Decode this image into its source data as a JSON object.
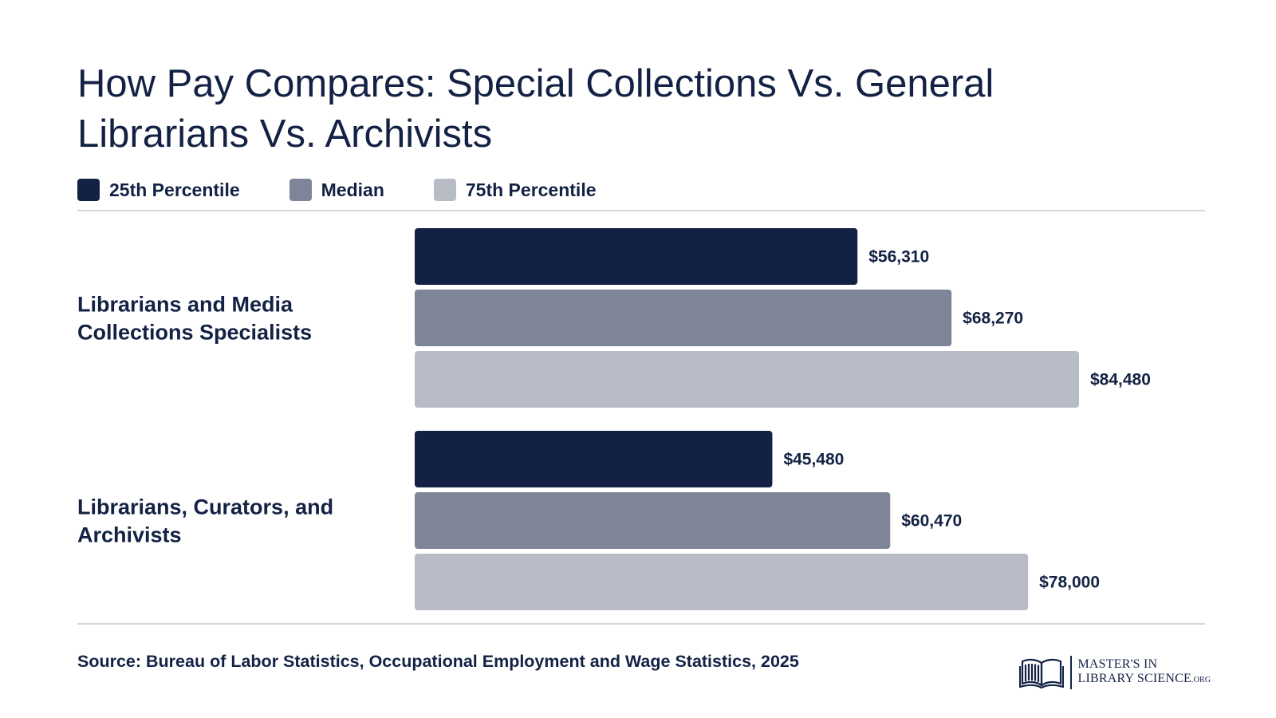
{
  "title": "How Pay Compares: Special Collections Vs. General Librarians Vs. Archivists",
  "legend": [
    {
      "label": "25th Percentile",
      "color": "#132244"
    },
    {
      "label": "Median",
      "color": "#7e8599"
    },
    {
      "label": "75th Percentile",
      "color": "#b8bcc7"
    }
  ],
  "source": "Source: Bureau of Labor Statistics, Occupational Employment and Wage Statistics, 2025",
  "logo": {
    "line1": "MASTER'S IN",
    "line2": "LIBRARY SCIENCE",
    "suffix": ".ORG",
    "icon": "open-book-icon"
  },
  "chart_data": {
    "type": "bar",
    "orientation": "horizontal",
    "categories": [
      [
        "Librarians and Media",
        "Collections Specialists"
      ],
      [
        "Librarians, Curators, and",
        "Archivists"
      ]
    ],
    "series": [
      {
        "name": "25th Percentile",
        "color": "#132244",
        "values": [
          56310,
          45480
        ],
        "labels": [
          "$56,310",
          "$45,480"
        ]
      },
      {
        "name": "Median",
        "color": "#7e8599",
        "values": [
          68270,
          60470
        ],
        "labels": [
          "$68,270",
          "$60,470"
        ]
      },
      {
        "name": "75th Percentile",
        "color": "#b8bcc7",
        "values": [
          84480,
          78000
        ],
        "labels": [
          "$84,480",
          "$78,000"
        ]
      }
    ],
    "xlim": [
      0,
      100000
    ],
    "grid": false,
    "legend_position": "top-left"
  }
}
